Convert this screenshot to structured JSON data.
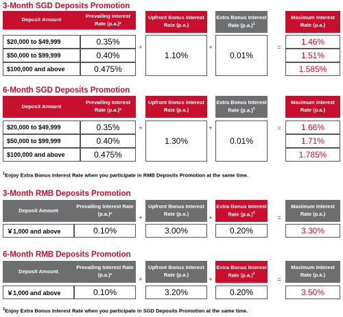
{
  "sections": [
    {
      "title": "3-Month SGD Deposits Promotion",
      "deposit_header": "Deposit Amount",
      "prevailing_header": "Prevailing Interest Rate (p.a.)*",
      "upfront_header": "Upfront Bonus Interest Rate (p.a.)",
      "extra_header": "Extra Bonus Interest Rate (p.a.)",
      "extra_sup": "1",
      "max_header": "Maximum Interest Rate (p.a.)",
      "rows": [
        {
          "amount": "$20,000 to $49,999",
          "prevailing": "0.35%",
          "max": "1.46%"
        },
        {
          "amount": "$50,000 to $99,999",
          "prevailing": "0.40%",
          "max": "1.51%"
        },
        {
          "amount": "$100,000 and above",
          "prevailing": "0.475%",
          "max": "1.585%"
        }
      ],
      "upfront": "1.10%",
      "extra": "0.01%"
    },
    {
      "title": "6-Month SGD Deposits Promotion",
      "deposit_header": "Deposit Amount",
      "prevailing_header": "Prevailing Interest Rate (p.a.)*",
      "upfront_header": "Upfront Bonus Interest Rate (p.a.)",
      "extra_header": "Extra Bonus Interest Rate (p.a.)",
      "extra_sup": "1",
      "max_header": "Maximum Interest Rate (p.a.)",
      "rows": [
        {
          "amount": "$20,000 to $49,999",
          "prevailing": "0.35%",
          "max": "1.66%"
        },
        {
          "amount": "$50,000 to $99,999",
          "prevailing": "0.40%",
          "max": "1.71%"
        },
        {
          "amount": "$100,000 and above",
          "prevailing": "0.475%",
          "max": "1.785%"
        }
      ],
      "upfront": "1.30%",
      "extra": "0.01%"
    },
    {
      "title": "3-Month RMB Deposits Promotion",
      "deposit_header": "Deposit Amount",
      "prevailing_header": "Prevailing Interest Rate (p.a.)*",
      "upfront_header": "Upfront Bonus Interest Rate (p.a.)",
      "extra_header": "Extra Bonus Interest Rate (p.a.)",
      "extra_sup": "2",
      "max_header": "Maximum Interest Rate (p.a.)",
      "rows": [
        {
          "amount": "￥1,000 and above",
          "prevailing": "0.10%",
          "max": "3.30%"
        }
      ],
      "upfront": "3.00%",
      "extra": "0.20%"
    },
    {
      "title": "6-Month RMB Deposits Promotion",
      "deposit_header": "Deposit Amount",
      "prevailing_header": "Prevailing Interest Rate (p.a.)*",
      "upfront_header": "Upfront Bonus Interest Rate (p.a.)",
      "extra_header": "Extra Bonus Interest Rate (p.a.)",
      "extra_sup": "2",
      "max_header": "Maximum Interest Rate (p.a.)",
      "rows": [
        {
          "amount": "￥1,000 and above",
          "prevailing": "0.10%",
          "max": "3.50%"
        }
      ],
      "upfront": "3.20%",
      "extra": "0.20%"
    }
  ],
  "operators": {
    "plus": "+",
    "equals": "="
  },
  "footnotes": {
    "note1_sup": "1",
    "note1": "Enjoy Extra Bonus Interest Rate when you participate in RMB Deposits Promotion at the same time.",
    "note2_sup": "2",
    "note2": "Enjoy Extra Bonus Interest Rate when you participate in SGD Deposits Promotion at the same time."
  },
  "colors": {
    "accent_red": "#c8102e",
    "header_gray": "#6d6e70"
  }
}
